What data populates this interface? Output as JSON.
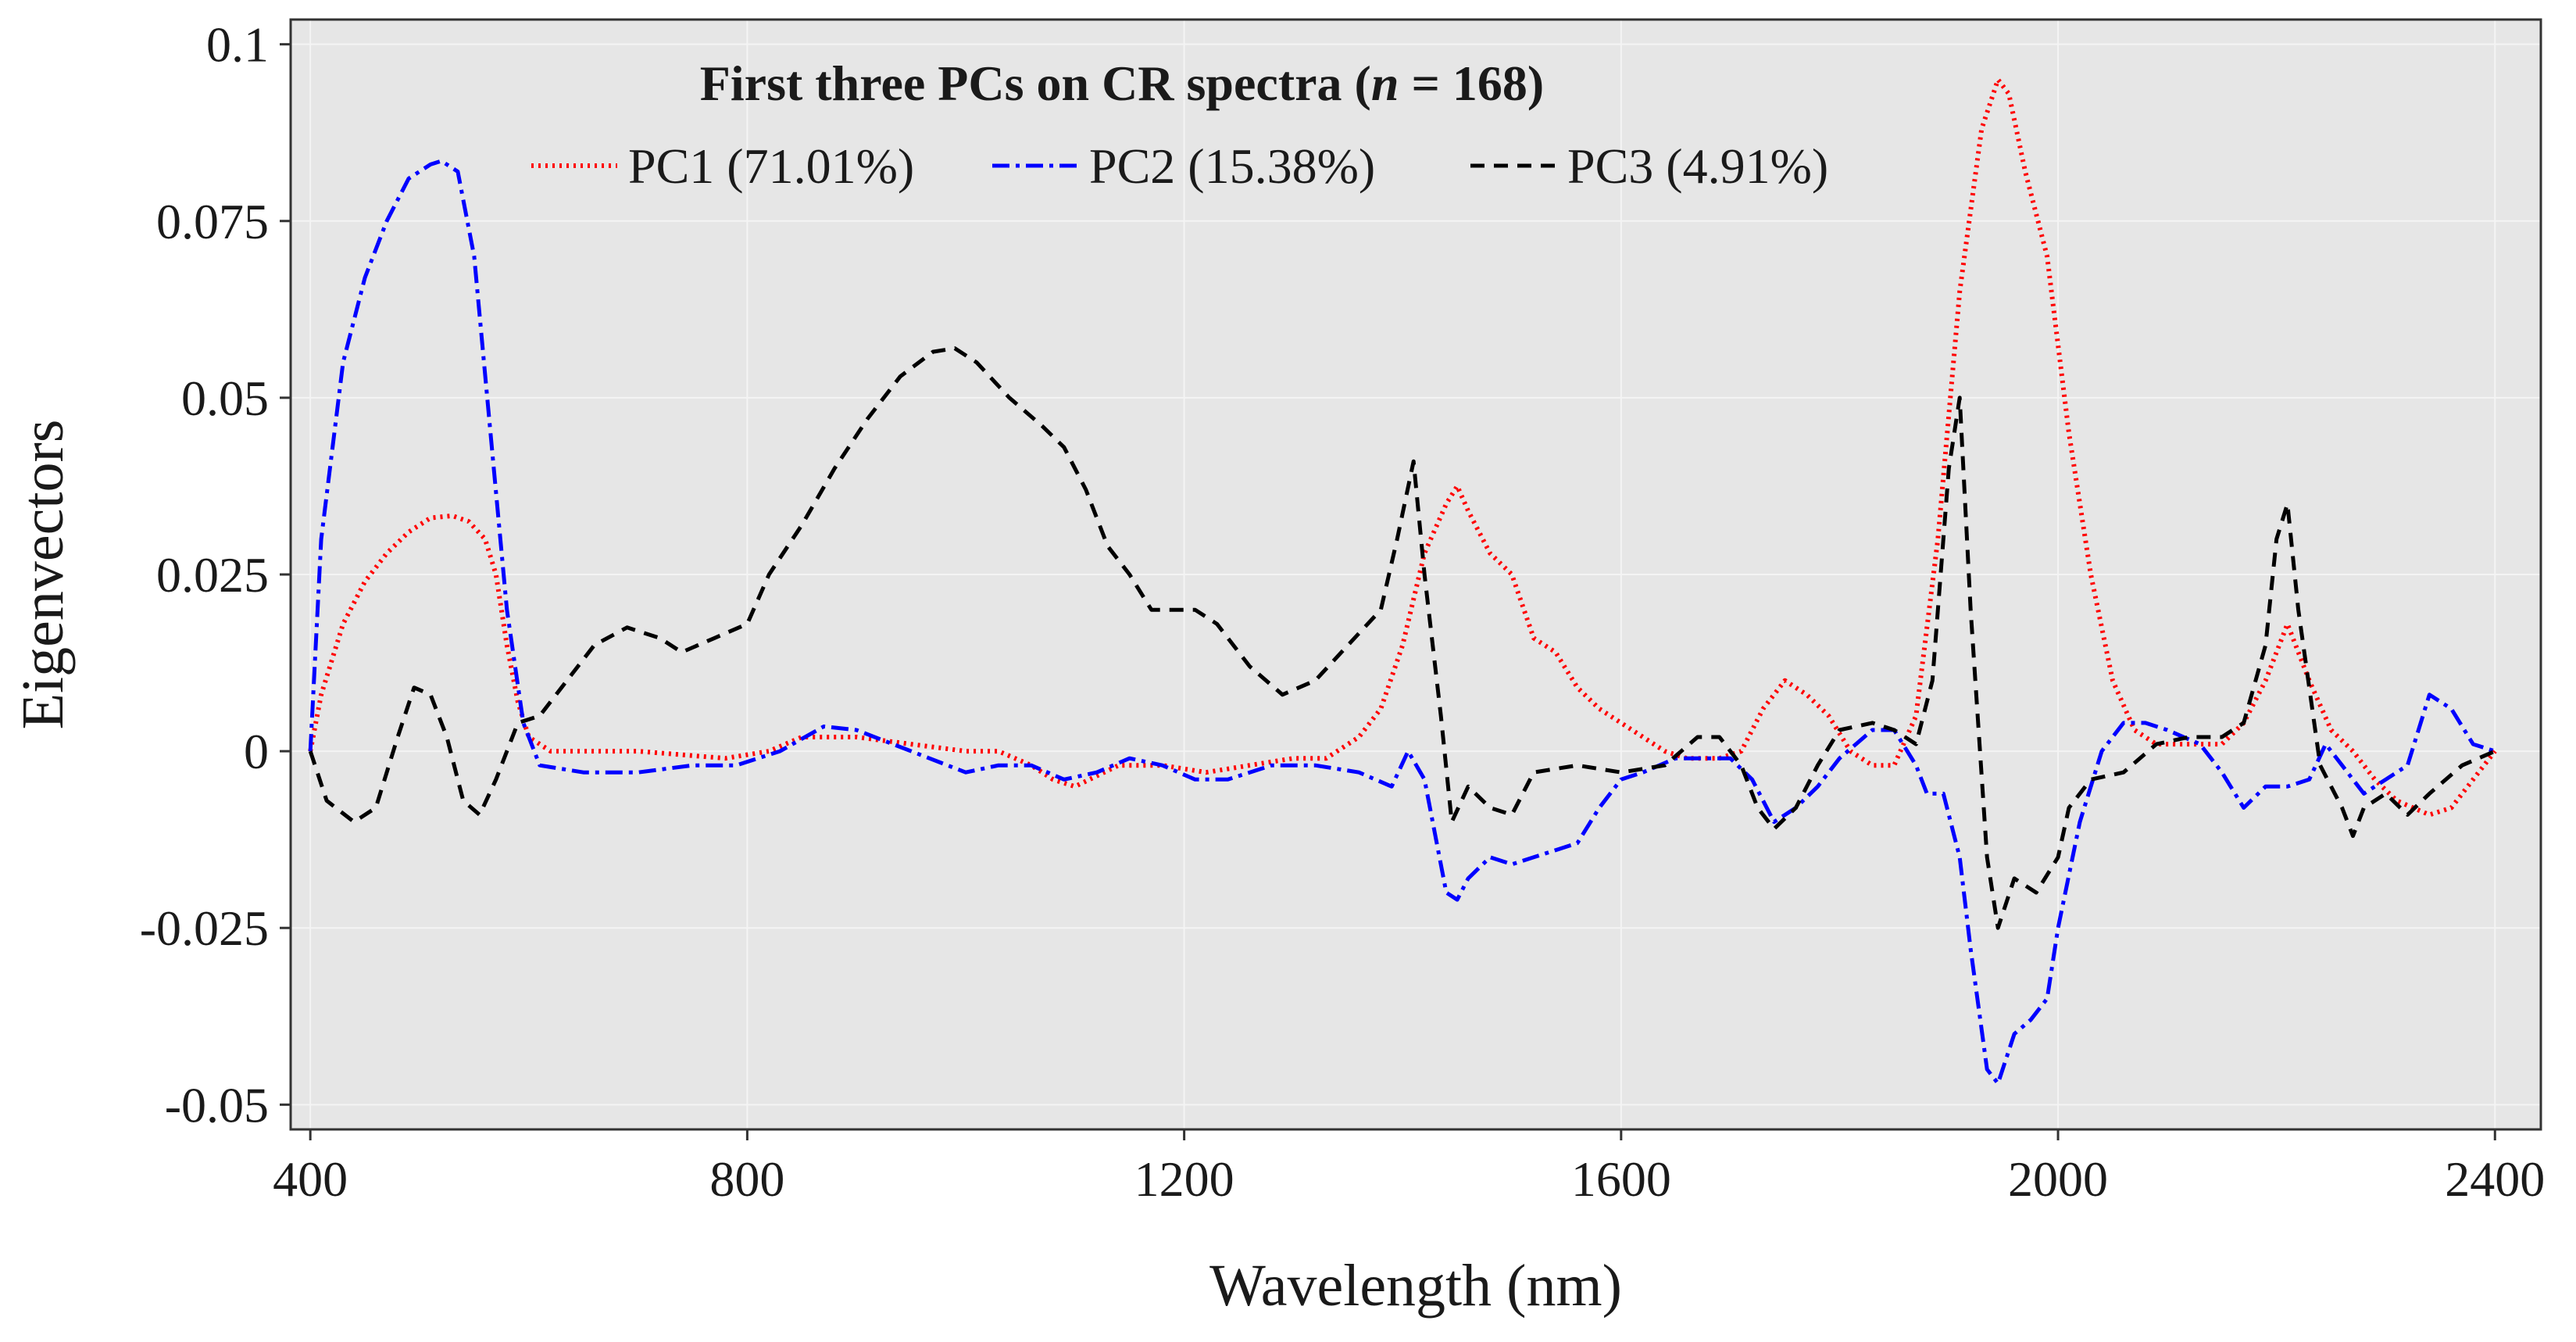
{
  "chart_data": {
    "type": "line",
    "title": "First three PCs on CR spectra (",
    "title_italic": "n",
    "title_suffix": " = 168)",
    "xlabel": "Wavelength (nm)",
    "ylabel": "Eigenvectors",
    "xlim": [
      382,
      2442
    ],
    "ylim": [
      -0.0535,
      0.1035
    ],
    "xticks": [
      400,
      800,
      1200,
      1600,
      2000,
      2400
    ],
    "xtick_labels": [
      "400",
      "800",
      "1200",
      "1600",
      "2000",
      "2400"
    ],
    "yticks": [
      -0.05,
      -0.025,
      0,
      0.025,
      0.05,
      0.075,
      0.1
    ],
    "ytick_labels": [
      "-0.05",
      "-0.025",
      "0",
      "0.025",
      "0.05",
      "0.075",
      "0.1"
    ],
    "grid": true,
    "legend_position": "top-center",
    "series": [
      {
        "name": "PC1 (71.01%)",
        "color": "#ff0000",
        "style": "dotted",
        "points": [
          [
            400,
            0
          ],
          [
            410,
            0.008
          ],
          [
            430,
            0.018
          ],
          [
            450,
            0.024
          ],
          [
            470,
            0.028
          ],
          [
            490,
            0.031
          ],
          [
            510,
            0.033
          ],
          [
            530,
            0.0333
          ],
          [
            545,
            0.0325
          ],
          [
            560,
            0.03
          ],
          [
            570,
            0.025
          ],
          [
            580,
            0.015
          ],
          [
            590,
            0.007
          ],
          [
            600,
            0.002
          ],
          [
            620,
            0
          ],
          [
            700,
            0
          ],
          [
            780,
            -0.001
          ],
          [
            820,
            0
          ],
          [
            850,
            0.002
          ],
          [
            900,
            0.002
          ],
          [
            950,
            0.001
          ],
          [
            1000,
            0
          ],
          [
            1030,
            0
          ],
          [
            1060,
            -0.002
          ],
          [
            1080,
            -0.004
          ],
          [
            1100,
            -0.005
          ],
          [
            1140,
            -0.002
          ],
          [
            1180,
            -0.002
          ],
          [
            1220,
            -0.003
          ],
          [
            1260,
            -0.002
          ],
          [
            1300,
            -0.001
          ],
          [
            1330,
            -0.001
          ],
          [
            1360,
            0.002
          ],
          [
            1380,
            0.006
          ],
          [
            1400,
            0.015
          ],
          [
            1420,
            0.028
          ],
          [
            1440,
            0.035
          ],
          [
            1450,
            0.0375
          ],
          [
            1460,
            0.034
          ],
          [
            1480,
            0.028
          ],
          [
            1500,
            0.025
          ],
          [
            1520,
            0.016
          ],
          [
            1540,
            0.014
          ],
          [
            1560,
            0.009
          ],
          [
            1580,
            0.006
          ],
          [
            1600,
            0.004
          ],
          [
            1620,
            0.002
          ],
          [
            1640,
            0
          ],
          [
            1660,
            -0.001
          ],
          [
            1690,
            -0.001
          ],
          [
            1710,
            0
          ],
          [
            1730,
            0.006
          ],
          [
            1750,
            0.01
          ],
          [
            1770,
            0.008
          ],
          [
            1790,
            0.005
          ],
          [
            1810,
            0
          ],
          [
            1830,
            -0.002
          ],
          [
            1850,
            -0.002
          ],
          [
            1870,
            0.005
          ],
          [
            1890,
            0.03
          ],
          [
            1910,
            0.065
          ],
          [
            1930,
            0.088
          ],
          [
            1945,
            0.095
          ],
          [
            1955,
            0.093
          ],
          [
            1970,
            0.082
          ],
          [
            1990,
            0.07
          ],
          [
            2010,
            0.045
          ],
          [
            2030,
            0.025
          ],
          [
            2050,
            0.01
          ],
          [
            2070,
            0.003
          ],
          [
            2090,
            0.001
          ],
          [
            2120,
            0.001
          ],
          [
            2150,
            0.001
          ],
          [
            2170,
            0.004
          ],
          [
            2190,
            0.01
          ],
          [
            2210,
            0.018
          ],
          [
            2230,
            0.01
          ],
          [
            2250,
            0.003
          ],
          [
            2270,
            0
          ],
          [
            2290,
            -0.004
          ],
          [
            2310,
            -0.007
          ],
          [
            2340,
            -0.009
          ],
          [
            2360,
            -0.008
          ],
          [
            2380,
            -0.004
          ],
          [
            2400,
            0
          ]
        ]
      },
      {
        "name": "PC2 (15.38%)",
        "color": "#0000ff",
        "style": "dashdot",
        "points": [
          [
            400,
            0
          ],
          [
            410,
            0.03
          ],
          [
            430,
            0.055
          ],
          [
            450,
            0.067
          ],
          [
            470,
            0.075
          ],
          [
            490,
            0.081
          ],
          [
            510,
            0.083
          ],
          [
            520,
            0.0835
          ],
          [
            535,
            0.082
          ],
          [
            550,
            0.07
          ],
          [
            565,
            0.045
          ],
          [
            580,
            0.02
          ],
          [
            595,
            0.004
          ],
          [
            610,
            -0.002
          ],
          [
            650,
            -0.003
          ],
          [
            700,
            -0.003
          ],
          [
            750,
            -0.002
          ],
          [
            790,
            -0.002
          ],
          [
            830,
            0
          ],
          [
            870,
            0.0035
          ],
          [
            900,
            0.003
          ],
          [
            950,
            0
          ],
          [
            1000,
            -0.003
          ],
          [
            1030,
            -0.002
          ],
          [
            1060,
            -0.002
          ],
          [
            1090,
            -0.004
          ],
          [
            1120,
            -0.003
          ],
          [
            1150,
            -0.001
          ],
          [
            1180,
            -0.002
          ],
          [
            1210,
            -0.004
          ],
          [
            1240,
            -0.004
          ],
          [
            1280,
            -0.002
          ],
          [
            1320,
            -0.002
          ],
          [
            1360,
            -0.003
          ],
          [
            1390,
            -0.005
          ],
          [
            1405,
            0
          ],
          [
            1420,
            -0.004
          ],
          [
            1440,
            -0.02
          ],
          [
            1450,
            -0.021
          ],
          [
            1460,
            -0.018
          ],
          [
            1480,
            -0.015
          ],
          [
            1500,
            -0.016
          ],
          [
            1520,
            -0.015
          ],
          [
            1540,
            -0.014
          ],
          [
            1560,
            -0.013
          ],
          [
            1580,
            -0.008
          ],
          [
            1600,
            -0.004
          ],
          [
            1620,
            -0.003
          ],
          [
            1650,
            -0.001
          ],
          [
            1680,
            -0.001
          ],
          [
            1700,
            -0.001
          ],
          [
            1720,
            -0.004
          ],
          [
            1740,
            -0.01
          ],
          [
            1760,
            -0.008
          ],
          [
            1780,
            -0.005
          ],
          [
            1800,
            -0.001
          ],
          [
            1830,
            0.003
          ],
          [
            1850,
            0.003
          ],
          [
            1870,
            -0.002
          ],
          [
            1880,
            -0.006
          ],
          [
            1895,
            -0.006
          ],
          [
            1910,
            -0.015
          ],
          [
            1920,
            -0.028
          ],
          [
            1935,
            -0.045
          ],
          [
            1945,
            -0.047
          ],
          [
            1960,
            -0.04
          ],
          [
            1975,
            -0.038
          ],
          [
            1990,
            -0.035
          ],
          [
            2000,
            -0.025
          ],
          [
            2020,
            -0.01
          ],
          [
            2040,
            0
          ],
          [
            2060,
            0.004
          ],
          [
            2080,
            0.004
          ],
          [
            2100,
            0.003
          ],
          [
            2130,
            0.001
          ],
          [
            2150,
            -0.003
          ],
          [
            2170,
            -0.008
          ],
          [
            2190,
            -0.005
          ],
          [
            2210,
            -0.005
          ],
          [
            2230,
            -0.004
          ],
          [
            2245,
            0.001
          ],
          [
            2260,
            -0.002
          ],
          [
            2280,
            -0.006
          ],
          [
            2300,
            -0.004
          ],
          [
            2320,
            -0.002
          ],
          [
            2340,
            0.008
          ],
          [
            2360,
            0.006
          ],
          [
            2380,
            0.001
          ],
          [
            2400,
            0
          ]
        ]
      },
      {
        "name": "PC3 (4.91%)",
        "color": "#000000",
        "style": "dashed",
        "points": [
          [
            400,
            0
          ],
          [
            415,
            -0.007
          ],
          [
            440,
            -0.01
          ],
          [
            460,
            -0.008
          ],
          [
            480,
            0.002
          ],
          [
            495,
            0.009
          ],
          [
            510,
            0.008
          ],
          [
            525,
            0.002
          ],
          [
            540,
            -0.007
          ],
          [
            555,
            -0.009
          ],
          [
            570,
            -0.004
          ],
          [
            590,
            0.004
          ],
          [
            610,
            0.005
          ],
          [
            630,
            0.009
          ],
          [
            660,
            0.015
          ],
          [
            690,
            0.0175
          ],
          [
            720,
            0.016
          ],
          [
            740,
            0.014
          ],
          [
            770,
            0.016
          ],
          [
            800,
            0.018
          ],
          [
            820,
            0.025
          ],
          [
            850,
            0.032
          ],
          [
            880,
            0.04
          ],
          [
            910,
            0.047
          ],
          [
            940,
            0.053
          ],
          [
            970,
            0.0565
          ],
          [
            990,
            0.057
          ],
          [
            1010,
            0.055
          ],
          [
            1040,
            0.05
          ],
          [
            1070,
            0.046
          ],
          [
            1090,
            0.043
          ],
          [
            1110,
            0.037
          ],
          [
            1130,
            0.029
          ],
          [
            1150,
            0.025
          ],
          [
            1170,
            0.02
          ],
          [
            1210,
            0.02
          ],
          [
            1230,
            0.018
          ],
          [
            1260,
            0.012
          ],
          [
            1290,
            0.008
          ],
          [
            1320,
            0.01
          ],
          [
            1350,
            0.015
          ],
          [
            1380,
            0.02
          ],
          [
            1395,
            0.03
          ],
          [
            1410,
            0.041
          ],
          [
            1420,
            0.025
          ],
          [
            1435,
            0.005
          ],
          [
            1445,
            -0.01
          ],
          [
            1460,
            -0.005
          ],
          [
            1480,
            -0.008
          ],
          [
            1500,
            -0.009
          ],
          [
            1520,
            -0.003
          ],
          [
            1560,
            -0.002
          ],
          [
            1600,
            -0.003
          ],
          [
            1640,
            -0.002
          ],
          [
            1670,
            0.002
          ],
          [
            1690,
            0.002
          ],
          [
            1710,
            -0.002
          ],
          [
            1725,
            -0.008
          ],
          [
            1740,
            -0.011
          ],
          [
            1760,
            -0.008
          ],
          [
            1780,
            -0.002
          ],
          [
            1800,
            0.003
          ],
          [
            1830,
            0.004
          ],
          [
            1850,
            0.003
          ],
          [
            1870,
            0.001
          ],
          [
            1885,
            0.01
          ],
          [
            1900,
            0.04
          ],
          [
            1910,
            0.05
          ],
          [
            1920,
            0.02
          ],
          [
            1935,
            -0.015
          ],
          [
            1945,
            -0.025
          ],
          [
            1960,
            -0.018
          ],
          [
            1980,
            -0.02
          ],
          [
            2000,
            -0.015
          ],
          [
            2010,
            -0.008
          ],
          [
            2030,
            -0.004
          ],
          [
            2060,
            -0.003
          ],
          [
            2090,
            0.001
          ],
          [
            2120,
            0.002
          ],
          [
            2150,
            0.002
          ],
          [
            2170,
            0.004
          ],
          [
            2190,
            0.015
          ],
          [
            2200,
            0.03
          ],
          [
            2210,
            0.035
          ],
          [
            2220,
            0.02
          ],
          [
            2240,
            -0.002
          ],
          [
            2260,
            -0.008
          ],
          [
            2270,
            -0.012
          ],
          [
            2280,
            -0.008
          ],
          [
            2300,
            -0.006
          ],
          [
            2320,
            -0.009
          ],
          [
            2340,
            -0.006
          ],
          [
            2370,
            -0.002
          ],
          [
            2400,
            0
          ]
        ]
      }
    ]
  }
}
